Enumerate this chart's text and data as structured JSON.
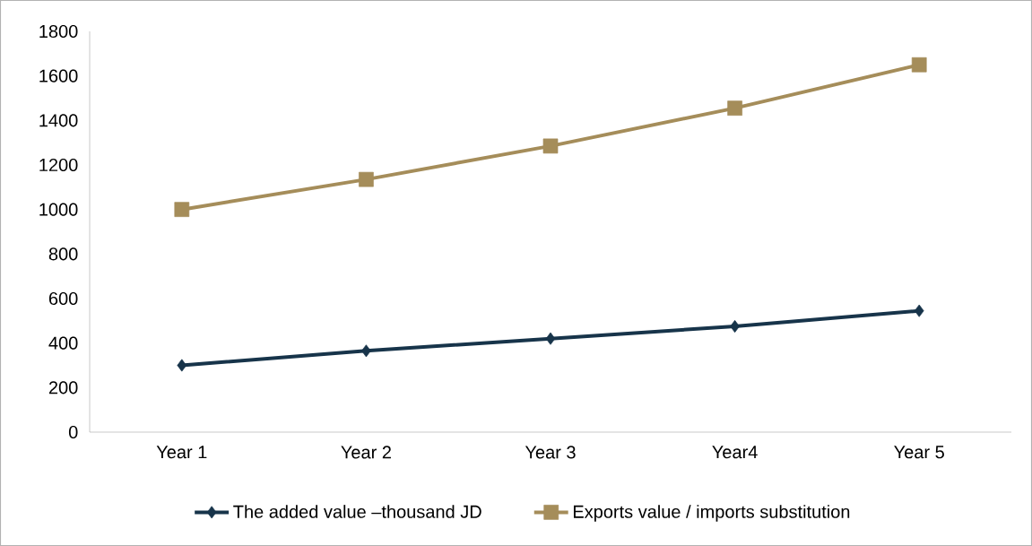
{
  "chart_data": {
    "type": "line",
    "categories": [
      "Year 1",
      "Year 2",
      "Year 3",
      "Year4",
      "Year 5"
    ],
    "series": [
      {
        "name": "The added value –thousand JD",
        "color": "#17344a",
        "marker": "diamond",
        "values": [
          300,
          365,
          420,
          475,
          545
        ]
      },
      {
        "name": "Exports value / imports substitution",
        "color": "#a58d5a",
        "marker": "square",
        "values": [
          1000,
          1135,
          1285,
          1455,
          1650
        ]
      }
    ],
    "ylim": [
      0,
      1800
    ],
    "yticks": [
      0,
      200,
      400,
      600,
      800,
      1000,
      1200,
      1400,
      1600,
      1800
    ],
    "grid": false,
    "legend": "bottom"
  }
}
